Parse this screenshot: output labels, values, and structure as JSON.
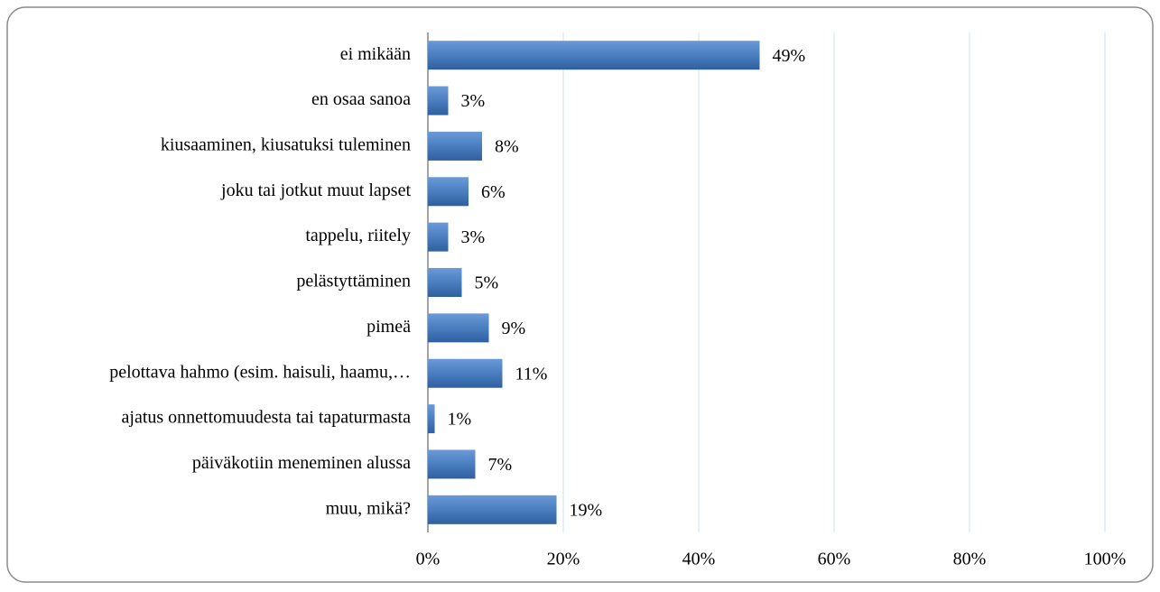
{
  "chart_data": {
    "type": "bar",
    "orientation": "horizontal",
    "categories": [
      "ei mikään",
      "en osaa sanoa",
      "kiusaaminen, kiusatuksi tuleminen",
      "joku tai jotkut muut lapset",
      "tappelu, riitely",
      "pelästyttäminen",
      "pimeä",
      "pelottava hahmo (esim. haisuli, haamu,…",
      "ajatus onnettomuudesta tai tapaturmasta",
      "päiväkotiin meneminen alussa",
      "muu, mikä?"
    ],
    "values": [
      49,
      3,
      8,
      6,
      3,
      5,
      9,
      11,
      1,
      7,
      19
    ],
    "value_labels": [
      "49%",
      "3%",
      "8%",
      "6%",
      "3%",
      "5%",
      "9%",
      "11%",
      "1%",
      "7%",
      "19%"
    ],
    "color": "#4a7ebf",
    "xlim": [
      0,
      100
    ],
    "xticks": [
      {
        "value": 0,
        "label": "0%"
      },
      {
        "value": 20,
        "label": "20%"
      },
      {
        "value": 40,
        "label": "40%"
      },
      {
        "value": 60,
        "label": "60%"
      },
      {
        "value": 80,
        "label": "80%"
      },
      {
        "value": 100,
        "label": "100%"
      }
    ],
    "grid": true
  }
}
